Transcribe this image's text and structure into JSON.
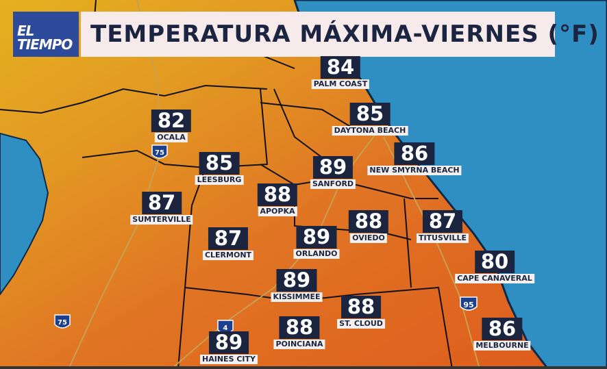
{
  "logo": {
    "line1": "EL",
    "line2": "TIEMPO"
  },
  "title": "TEMPERATURA MÁXIMA-VIERNES (°F)",
  "colors": {
    "ocean": "#2f8fc2",
    "land_warm": "#e06a1e",
    "land_cool": "#e4a020",
    "label_bg": "#1b2540",
    "title_bg": "#f7eaea",
    "logo_bg": "#2e4a9a"
  },
  "highways": [
    {
      "name": "75"
    },
    {
      "name": "4"
    },
    {
      "name": "95"
    }
  ],
  "cities": [
    {
      "name": "PALM COAST",
      "temp": "84"
    },
    {
      "name": "DAYTONA BEACH",
      "temp": "85"
    },
    {
      "name": "NEW SMYRNA BEACH",
      "temp": "86"
    },
    {
      "name": "OCALA",
      "temp": "82"
    },
    {
      "name": "LEESBURG",
      "temp": "85"
    },
    {
      "name": "SANFORD",
      "temp": "89"
    },
    {
      "name": "SUMTERVILLE",
      "temp": "87"
    },
    {
      "name": "APOPKA",
      "temp": "88"
    },
    {
      "name": "OVIEDO",
      "temp": "88"
    },
    {
      "name": "TITUSVILLE",
      "temp": "87"
    },
    {
      "name": "CLERMONT",
      "temp": "87"
    },
    {
      "name": "ORLANDO",
      "temp": "89"
    },
    {
      "name": "CAPE CANAVERAL",
      "temp": "80"
    },
    {
      "name": "KISSIMMEE",
      "temp": "89"
    },
    {
      "name": "ST. CLOUD",
      "temp": "88"
    },
    {
      "name": "POINCIANA",
      "temp": "88"
    },
    {
      "name": "HAINES CITY",
      "temp": "89"
    },
    {
      "name": "MELBOURNE",
      "temp": "86"
    }
  ]
}
